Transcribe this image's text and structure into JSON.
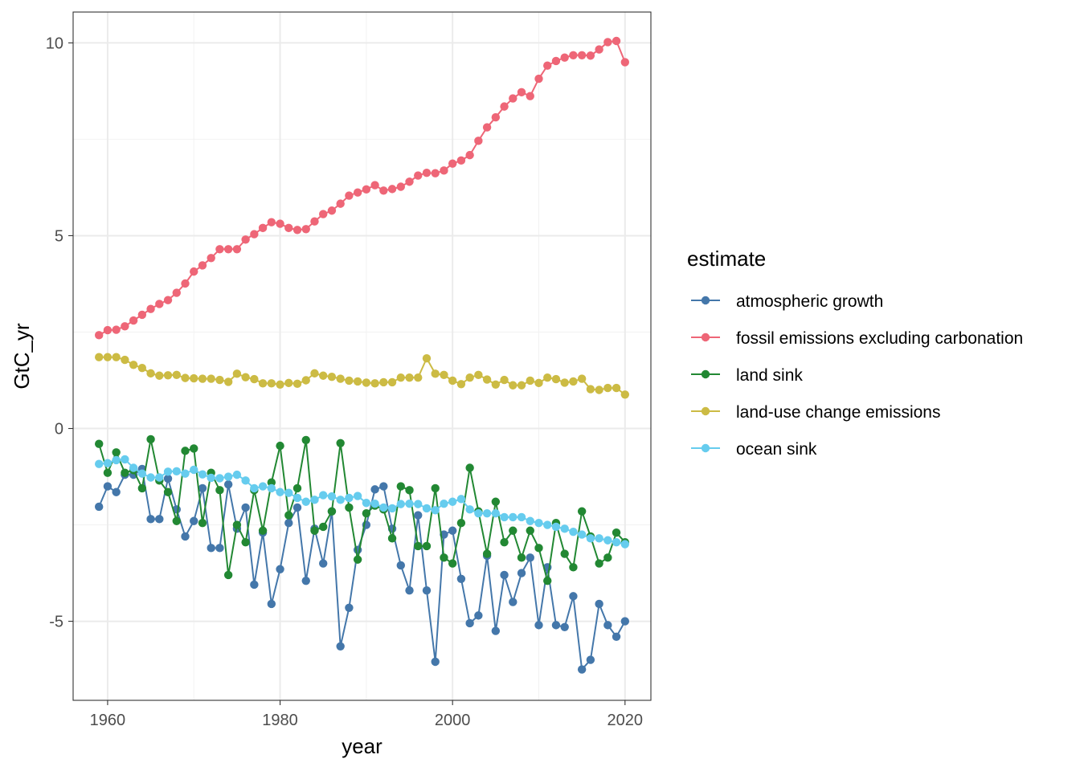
{
  "chart_data": {
    "type": "line",
    "xlabel": "year",
    "ylabel": "GtC_yr",
    "xlim": [
      1956,
      2023
    ],
    "ylim": [
      -7.05,
      10.8
    ],
    "x_ticks": [
      1960,
      1980,
      2000,
      2020
    ],
    "x_tick_labels": [
      "1960",
      "1980",
      "2000",
      "2020"
    ],
    "y_ticks": [
      -5,
      0,
      5,
      10
    ],
    "y_tick_labels": [
      "-5",
      "0",
      "5",
      "10"
    ],
    "grid": true,
    "legend": {
      "title": "estimate",
      "position": "right"
    },
    "x": [
      1959,
      1960,
      1961,
      1962,
      1963,
      1964,
      1965,
      1966,
      1967,
      1968,
      1969,
      1970,
      1971,
      1972,
      1973,
      1974,
      1975,
      1976,
      1977,
      1978,
      1979,
      1980,
      1981,
      1982,
      1983,
      1984,
      1985,
      1986,
      1987,
      1988,
      1989,
      1990,
      1991,
      1992,
      1993,
      1994,
      1995,
      1996,
      1997,
      1998,
      1999,
      2000,
      2001,
      2002,
      2003,
      2004,
      2005,
      2006,
      2007,
      2008,
      2009,
      2010,
      2011,
      2012,
      2013,
      2014,
      2015,
      2016,
      2017,
      2018,
      2019,
      2020
    ],
    "series": [
      {
        "name": "atmospheric growth",
        "color": "#4477aa",
        "values": [
          -2.03,
          -1.5,
          -1.65,
          -1.2,
          -1.2,
          -1.05,
          -2.35,
          -2.35,
          -1.3,
          -2.1,
          -2.8,
          -2.4,
          -1.55,
          -3.1,
          -3.1,
          -1.45,
          -2.6,
          -2.05,
          -4.05,
          -2.7,
          -4.55,
          -3.65,
          -2.45,
          -2.05,
          -3.95,
          -2.6,
          -3.5,
          -2.15,
          -5.65,
          -4.65,
          -3.15,
          -2.5,
          -1.58,
          -1.5,
          -2.6,
          -3.55,
          -4.2,
          -2.25,
          -4.2,
          -6.05,
          -2.75,
          -2.65,
          -3.9,
          -5.05,
          -4.85,
          -3.3,
          -5.25,
          -3.8,
          -4.5,
          -3.75,
          -3.35,
          -5.1,
          -3.6,
          -5.1,
          -5.15,
          -4.35,
          -6.25,
          -6.0,
          -4.55,
          -5.1,
          -5.4,
          -5.0
        ]
      },
      {
        "name": "fossil emissions excluding carbonation",
        "color": "#ee6677",
        "values": [
          2.42,
          2.55,
          2.56,
          2.65,
          2.8,
          2.95,
          3.1,
          3.23,
          3.33,
          3.52,
          3.76,
          4.07,
          4.23,
          4.42,
          4.65,
          4.65,
          4.65,
          4.9,
          5.04,
          5.2,
          5.35,
          5.31,
          5.2,
          5.15,
          5.17,
          5.37,
          5.56,
          5.65,
          5.83,
          6.04,
          6.12,
          6.2,
          6.31,
          6.17,
          6.21,
          6.27,
          6.4,
          6.56,
          6.63,
          6.62,
          6.69,
          6.87,
          6.95,
          7.09,
          7.46,
          7.81,
          8.07,
          8.35,
          8.56,
          8.72,
          8.62,
          9.07,
          9.41,
          9.53,
          9.62,
          9.68,
          9.68,
          9.67,
          9.83,
          10.02,
          10.05,
          9.5
        ]
      },
      {
        "name": "land sink",
        "color": "#228833",
        "values": [
          -0.4,
          -1.15,
          -0.62,
          -1.15,
          -1.08,
          -1.55,
          -0.28,
          -1.35,
          -1.65,
          -2.4,
          -0.58,
          -0.52,
          -2.45,
          -1.15,
          -1.6,
          -3.8,
          -2.5,
          -2.95,
          -1.6,
          -2.65,
          -1.4,
          -0.45,
          -2.25,
          -1.55,
          -0.3,
          -2.65,
          -2.55,
          -2.15,
          -0.38,
          -2.05,
          -3.4,
          -2.2,
          -2.0,
          -2.1,
          -2.85,
          -1.5,
          -1.6,
          -3.05,
          -3.05,
          -1.55,
          -3.35,
          -3.5,
          -2.45,
          -1.02,
          -2.15,
          -3.25,
          -1.9,
          -2.95,
          -2.65,
          -3.35,
          -2.65,
          -3.1,
          -3.95,
          -2.45,
          -3.25,
          -3.6,
          -2.15,
          -2.8,
          -3.5,
          -3.35,
          -2.7,
          -2.95
        ]
      },
      {
        "name": "land-use change emissions",
        "color": "#ccbb44",
        "values": [
          1.85,
          1.85,
          1.85,
          1.78,
          1.65,
          1.57,
          1.43,
          1.37,
          1.38,
          1.39,
          1.31,
          1.3,
          1.29,
          1.29,
          1.26,
          1.21,
          1.42,
          1.33,
          1.28,
          1.17,
          1.17,
          1.14,
          1.18,
          1.16,
          1.25,
          1.43,
          1.37,
          1.34,
          1.29,
          1.24,
          1.22,
          1.19,
          1.17,
          1.2,
          1.2,
          1.32,
          1.32,
          1.32,
          1.82,
          1.42,
          1.39,
          1.24,
          1.15,
          1.32,
          1.39,
          1.27,
          1.14,
          1.26,
          1.12,
          1.12,
          1.24,
          1.18,
          1.32,
          1.28,
          1.19,
          1.22,
          1.29,
          1.02,
          1.0,
          1.05,
          1.05,
          0.88
        ]
      },
      {
        "name": "ocean sink",
        "color": "#66ccee",
        "values": [
          -0.92,
          -0.9,
          -0.82,
          -0.8,
          -1.02,
          -1.17,
          -1.27,
          -1.27,
          -1.12,
          -1.11,
          -1.17,
          -1.07,
          -1.19,
          -1.28,
          -1.29,
          -1.25,
          -1.2,
          -1.35,
          -1.55,
          -1.5,
          -1.55,
          -1.65,
          -1.67,
          -1.8,
          -1.9,
          -1.85,
          -1.73,
          -1.76,
          -1.85,
          -1.8,
          -1.75,
          -1.93,
          -1.95,
          -2.05,
          -2.07,
          -1.96,
          -1.95,
          -1.96,
          -2.07,
          -2.12,
          -1.95,
          -1.9,
          -1.83,
          -2.1,
          -2.2,
          -2.2,
          -2.2,
          -2.3,
          -2.3,
          -2.3,
          -2.4,
          -2.45,
          -2.5,
          -2.55,
          -2.6,
          -2.68,
          -2.75,
          -2.85,
          -2.85,
          -2.9,
          -2.95,
          -3.0
        ]
      }
    ]
  }
}
